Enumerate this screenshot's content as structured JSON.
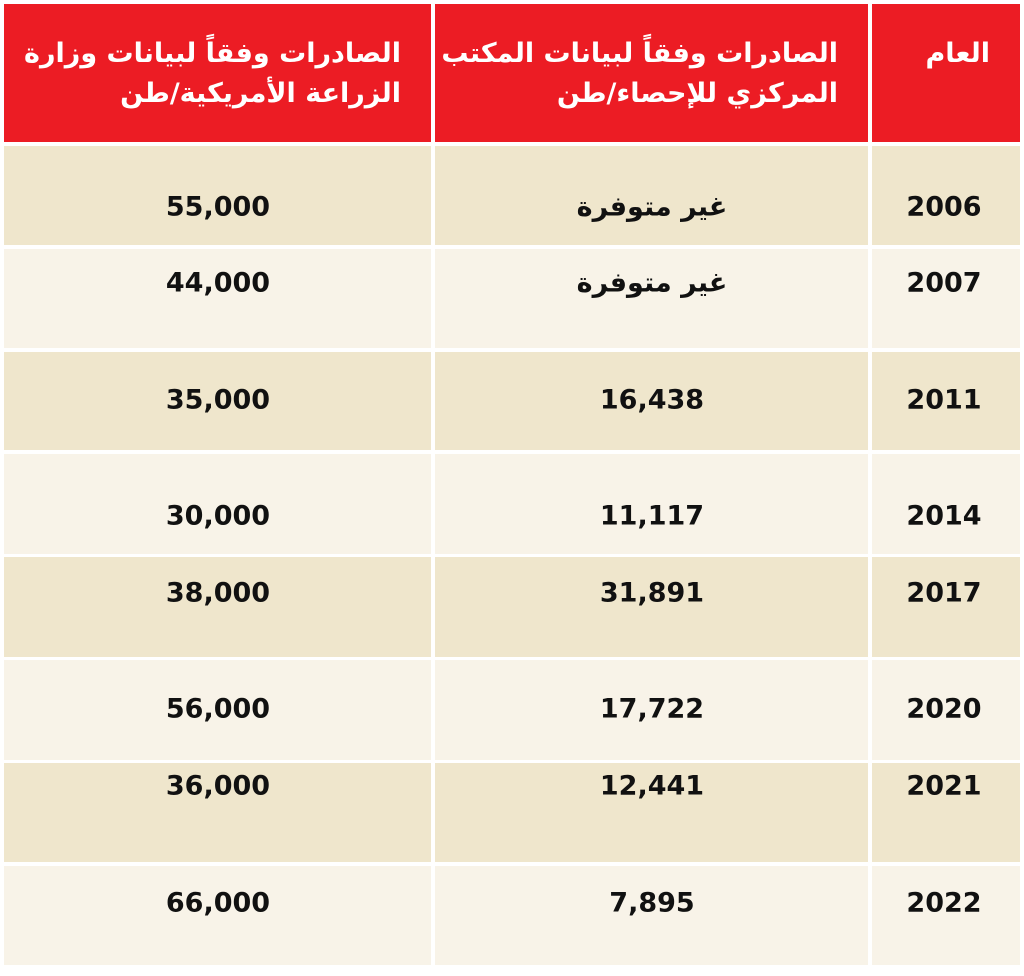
{
  "table": {
    "headers": [
      [
        "العام"
      ],
      [
        "الصادرات وفقاً لبيانات المكتب",
        "المركزي للإحصاء/طن"
      ],
      [
        "الصادرات وفقاً لبيانات وزارة",
        "الزراعة الأمريكية/طن"
      ]
    ],
    "rows": [
      [
        "2006",
        "غير متوفرة",
        "55,000"
      ],
      [
        "2007",
        "غير متوفرة",
        "44,000"
      ],
      [
        "2011",
        "16,438",
        "35,000"
      ],
      [
        "2014",
        "11,117",
        "30,000"
      ],
      [
        "2017",
        "31,891",
        "38,000"
      ],
      [
        "2020",
        "17,722",
        "56,000"
      ],
      [
        "2021",
        "12,441",
        "36,000"
      ],
      [
        "2022",
        "7,895",
        "66,000"
      ]
    ]
  }
}
